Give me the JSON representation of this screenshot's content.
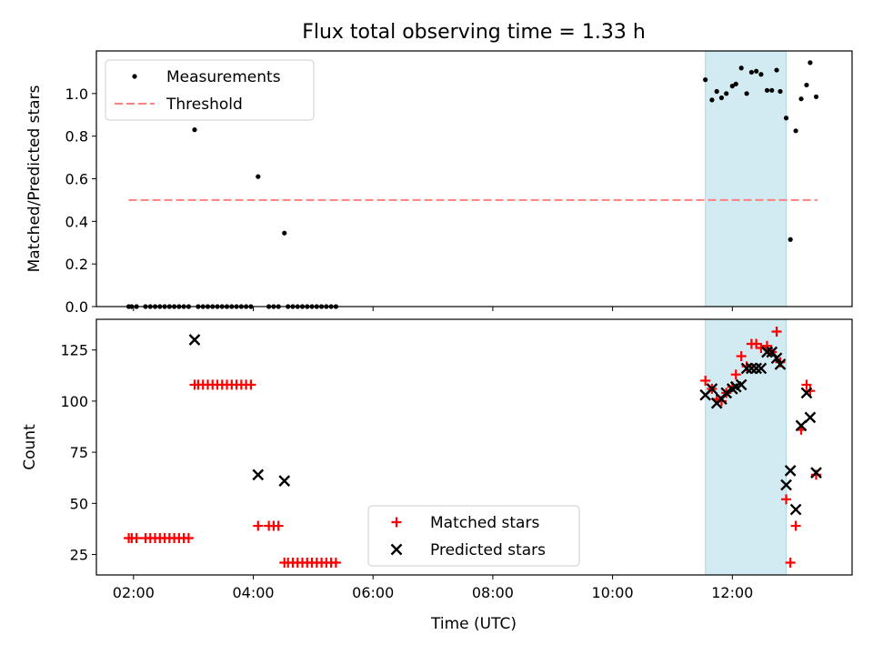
{
  "chart_data": {
    "title": "Flux total observing time = 1.33 h",
    "xlabel": "Time (UTC)",
    "xlim": [
      1.38,
      14.0
    ],
    "x_ticks": [
      {
        "v": 2,
        "label": "02:00"
      },
      {
        "v": 4,
        "label": "04:00"
      },
      {
        "v": 6,
        "label": "06:00"
      },
      {
        "v": 8,
        "label": "08:00"
      },
      {
        "v": 10,
        "label": "10:00"
      },
      {
        "v": 12,
        "label": "12:00"
      }
    ],
    "highlight": {
      "x0": 11.55,
      "x1": 12.9,
      "color": "#add8e6"
    },
    "panels": [
      {
        "type": "scatter",
        "ylabel": "Matched/Predicted stars",
        "ylim": [
          0,
          1.2
        ],
        "y_ticks": [
          {
            "v": 0,
            "label": "0.0"
          },
          {
            "v": 0.2,
            "label": "0.2"
          },
          {
            "v": 0.4,
            "label": "0.4"
          },
          {
            "v": 0.6,
            "label": "0.6"
          },
          {
            "v": 0.8,
            "label": "0.8"
          },
          {
            "v": 1.0,
            "label": "1.0"
          }
        ],
        "legend": [
          "Measurements",
          "Threshold"
        ],
        "threshold": {
          "value": 0.5,
          "x0": 1.92,
          "x1": 13.42,
          "color": "#ff8080"
        },
        "series": [
          {
            "name": "Measurements",
            "color": "#000000",
            "points": [
              [
                1.92,
                0
              ],
              [
                1.97,
                0
              ],
              [
                2.05,
                0
              ],
              [
                2.2,
                0
              ],
              [
                2.28,
                0
              ],
              [
                2.36,
                0
              ],
              [
                2.44,
                0
              ],
              [
                2.52,
                0
              ],
              [
                2.6,
                0
              ],
              [
                2.68,
                0
              ],
              [
                2.76,
                0
              ],
              [
                2.84,
                0
              ],
              [
                2.92,
                0
              ],
              [
                3.02,
                0.83
              ],
              [
                3.08,
                0
              ],
              [
                3.16,
                0
              ],
              [
                3.24,
                0
              ],
              [
                3.32,
                0
              ],
              [
                3.4,
                0
              ],
              [
                3.48,
                0
              ],
              [
                3.56,
                0
              ],
              [
                3.64,
                0
              ],
              [
                3.72,
                0
              ],
              [
                3.8,
                0
              ],
              [
                3.88,
                0
              ],
              [
                3.96,
                0
              ],
              [
                4.08,
                0.61
              ],
              [
                4.26,
                0
              ],
              [
                4.34,
                0
              ],
              [
                4.42,
                0
              ],
              [
                4.52,
                0.345
              ],
              [
                4.58,
                0
              ],
              [
                4.66,
                0
              ],
              [
                4.74,
                0
              ],
              [
                4.82,
                0
              ],
              [
                4.9,
                0
              ],
              [
                4.98,
                0
              ],
              [
                5.06,
                0
              ],
              [
                5.14,
                0
              ],
              [
                5.22,
                0
              ],
              [
                5.3,
                0
              ],
              [
                5.38,
                0
              ],
              [
                11.55,
                1.065
              ],
              [
                11.66,
                0.97
              ],
              [
                11.74,
                1.01
              ],
              [
                11.82,
                0.98
              ],
              [
                11.9,
                1.0
              ],
              [
                12.0,
                1.035
              ],
              [
                12.06,
                1.045
              ],
              [
                12.15,
                1.12
              ],
              [
                12.24,
                1.0
              ],
              [
                12.32,
                1.1
              ],
              [
                12.4,
                1.105
              ],
              [
                12.48,
                1.09
              ],
              [
                12.58,
                1.015
              ],
              [
                12.66,
                1.015
              ],
              [
                12.74,
                1.11
              ],
              [
                12.8,
                1.01
              ],
              [
                12.9,
                0.885
              ],
              [
                12.97,
                0.315
              ],
              [
                13.06,
                0.825
              ],
              [
                13.15,
                0.975
              ],
              [
                13.24,
                1.04
              ],
              [
                13.3,
                1.145
              ],
              [
                13.4,
                0.985
              ]
            ]
          }
        ]
      },
      {
        "type": "scatter",
        "ylabel": "Count",
        "ylim": [
          15,
          140
        ],
        "y_ticks": [
          {
            "v": 25,
            "label": "25"
          },
          {
            "v": 50,
            "label": "50"
          },
          {
            "v": 75,
            "label": "75"
          },
          {
            "v": 100,
            "label": "100"
          },
          {
            "v": 125,
            "label": "125"
          }
        ],
        "legend": [
          "Matched stars",
          "Predicted stars"
        ],
        "series": [
          {
            "name": "Matched stars",
            "color": "#ff0000",
            "marker": "plus",
            "points": [
              [
                1.92,
                33
              ],
              [
                1.97,
                33
              ],
              [
                2.05,
                33
              ],
              [
                2.2,
                33
              ],
              [
                2.28,
                33
              ],
              [
                2.36,
                33
              ],
              [
                2.44,
                33
              ],
              [
                2.52,
                33
              ],
              [
                2.6,
                33
              ],
              [
                2.68,
                33
              ],
              [
                2.76,
                33
              ],
              [
                2.84,
                33
              ],
              [
                2.92,
                33
              ],
              [
                3.02,
                108
              ],
              [
                3.08,
                108
              ],
              [
                3.16,
                108
              ],
              [
                3.24,
                108
              ],
              [
                3.32,
                108
              ],
              [
                3.4,
                108
              ],
              [
                3.48,
                108
              ],
              [
                3.56,
                108
              ],
              [
                3.64,
                108
              ],
              [
                3.72,
                108
              ],
              [
                3.8,
                108
              ],
              [
                3.88,
                108
              ],
              [
                3.96,
                108
              ],
              [
                4.08,
                39
              ],
              [
                4.26,
                39
              ],
              [
                4.34,
                39
              ],
              [
                4.42,
                39
              ],
              [
                4.52,
                21
              ],
              [
                4.58,
                21
              ],
              [
                4.66,
                21
              ],
              [
                4.74,
                21
              ],
              [
                4.82,
                21
              ],
              [
                4.9,
                21
              ],
              [
                4.98,
                21
              ],
              [
                5.06,
                21
              ],
              [
                5.14,
                21
              ],
              [
                5.22,
                21
              ],
              [
                5.3,
                21
              ],
              [
                5.38,
                21
              ],
              [
                11.55,
                110
              ],
              [
                11.66,
                106
              ],
              [
                11.74,
                101
              ],
              [
                11.82,
                100
              ],
              [
                11.9,
                104
              ],
              [
                12.0,
                107
              ],
              [
                12.06,
                113
              ],
              [
                12.15,
                122
              ],
              [
                12.24,
                117
              ],
              [
                12.32,
                128
              ],
              [
                12.4,
                128
              ],
              [
                12.48,
                126
              ],
              [
                12.58,
                127
              ],
              [
                12.66,
                124
              ],
              [
                12.74,
                134
              ],
              [
                12.8,
                119
              ],
              [
                12.9,
                52
              ],
              [
                12.97,
                21
              ],
              [
                13.06,
                39
              ],
              [
                13.15,
                86
              ],
              [
                13.24,
                108
              ],
              [
                13.3,
                105
              ],
              [
                13.4,
                64
              ]
            ]
          },
          {
            "name": "Predicted stars",
            "color": "#000000",
            "marker": "x",
            "points": [
              [
                3.02,
                130
              ],
              [
                4.08,
                64
              ],
              [
                4.52,
                61
              ],
              [
                11.55,
                103
              ],
              [
                11.66,
                106
              ],
              [
                11.74,
                99
              ],
              [
                11.82,
                101
              ],
              [
                11.9,
                104
              ],
              [
                12.0,
                106
              ],
              [
                12.06,
                107
              ],
              [
                12.15,
                108
              ],
              [
                12.24,
                116
              ],
              [
                12.32,
                116
              ],
              [
                12.4,
                116
              ],
              [
                12.48,
                116
              ],
              [
                12.58,
                124
              ],
              [
                12.66,
                124
              ],
              [
                12.74,
                121
              ],
              [
                12.8,
                118
              ],
              [
                12.9,
                59
              ],
              [
                12.97,
                66
              ],
              [
                13.06,
                47
              ],
              [
                13.15,
                88
              ],
              [
                13.24,
                104
              ],
              [
                13.3,
                92
              ],
              [
                13.4,
                65
              ]
            ]
          }
        ]
      }
    ]
  }
}
